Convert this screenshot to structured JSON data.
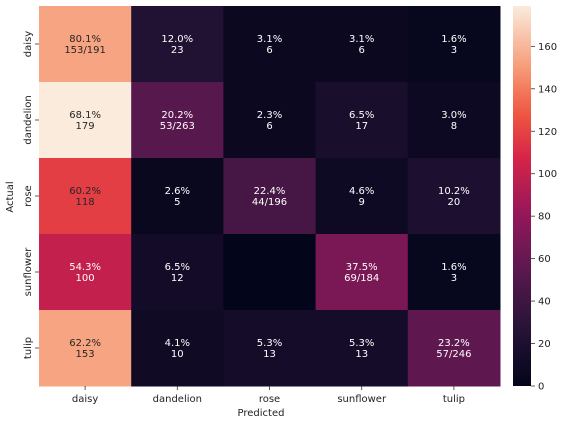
{
  "chart_data": {
    "type": "heatmap",
    "title": "",
    "xlabel": "Predicted",
    "ylabel": "Actual",
    "x_categories": [
      "daisy",
      "dandelion",
      "rose",
      "sunflower",
      "tulip"
    ],
    "y_categories": [
      "daisy",
      "dandelion",
      "rose",
      "sunflower",
      "tulip"
    ],
    "values": [
      [
        153,
        23,
        6,
        6,
        3
      ],
      [
        179,
        53,
        6,
        17,
        8
      ],
      [
        118,
        5,
        44,
        9,
        20
      ],
      [
        100,
        12,
        0,
        69,
        3
      ],
      [
        153,
        10,
        13,
        13,
        57
      ]
    ],
    "annotations": [
      [
        [
          "80.1%",
          "153/191"
        ],
        [
          "12.0%",
          "23"
        ],
        [
          "3.1%",
          "6"
        ],
        [
          "3.1%",
          "6"
        ],
        [
          "1.6%",
          "3"
        ]
      ],
      [
        [
          "68.1%",
          "179"
        ],
        [
          "20.2%",
          "53/263"
        ],
        [
          "2.3%",
          "6"
        ],
        [
          "6.5%",
          "17"
        ],
        [
          "3.0%",
          "8"
        ]
      ],
      [
        [
          "60.2%",
          "118"
        ],
        [
          "2.6%",
          "5"
        ],
        [
          "22.4%",
          "44/196"
        ],
        [
          "4.6%",
          "9"
        ],
        [
          "10.2%",
          "20"
        ]
      ],
      [
        [
          "54.3%",
          "100"
        ],
        [
          "6.5%",
          "12"
        ],
        [
          "",
          ""
        ],
        [
          "37.5%",
          "69/184"
        ],
        [
          "1.6%",
          "3"
        ]
      ],
      [
        [
          "62.2%",
          "153"
        ],
        [
          "4.1%",
          "10"
        ],
        [
          "5.3%",
          "13"
        ],
        [
          "5.3%",
          "13"
        ],
        [
          "23.2%",
          "57/246"
        ]
      ]
    ],
    "colorbar": {
      "min": 0,
      "max": 179,
      "ticks": [
        0,
        20,
        40,
        60,
        80,
        100,
        120,
        140,
        160
      ],
      "colormap": "rocket"
    },
    "grid": false,
    "legend": "colorbar-right"
  }
}
